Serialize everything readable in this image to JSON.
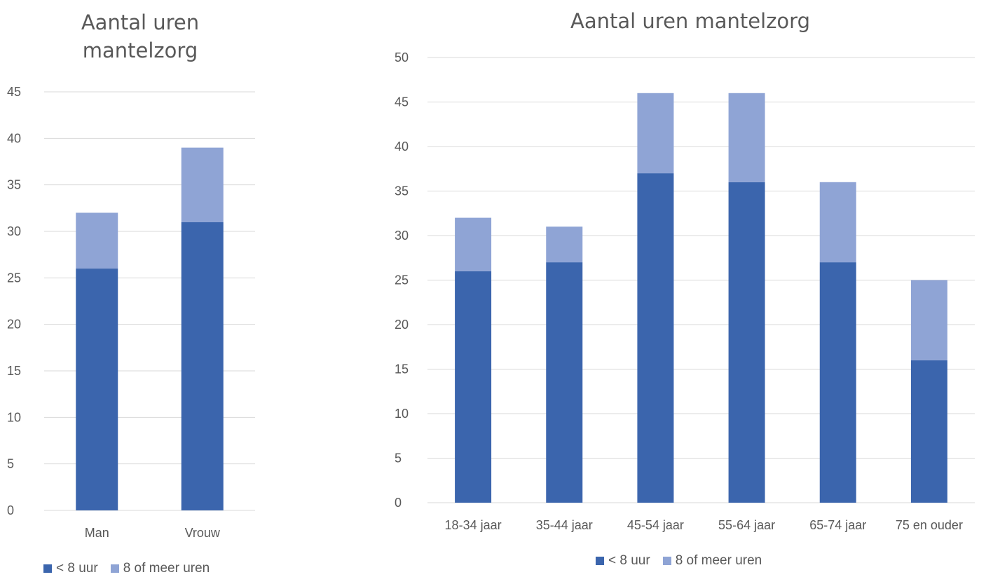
{
  "colors": {
    "lt8": "#3b65ad",
    "ge8": "#8fa4d5",
    "grid": "#d9d9d9",
    "text": "#595959"
  },
  "chart_data": [
    {
      "type": "bar",
      "stacked": true,
      "title": "Aantal uren mantelzorg",
      "categories": [
        "Man",
        "Vrouw"
      ],
      "series": [
        {
          "name": "< 8 uur",
          "values": [
            26,
            31
          ]
        },
        {
          "name": "8 of meer uren",
          "values": [
            6,
            8
          ]
        }
      ],
      "ylim": [
        0,
        45
      ],
      "yticks": [
        0,
        5,
        10,
        15,
        20,
        25,
        30,
        35,
        40,
        45
      ],
      "grid": true,
      "legend": "bottom"
    },
    {
      "type": "bar",
      "stacked": true,
      "title": "Aantal uren mantelzorg",
      "categories": [
        "18-34 jaar",
        "35-44 jaar",
        "45-54 jaar",
        "55-64 jaar",
        "65-74 jaar",
        "75 en ouder"
      ],
      "series": [
        {
          "name": "< 8 uur",
          "values": [
            26,
            27,
            37,
            36,
            27,
            16
          ]
        },
        {
          "name": "8 of meer uren",
          "values": [
            6,
            4,
            9,
            10,
            9,
            9
          ]
        }
      ],
      "ylim": [
        0,
        50
      ],
      "yticks": [
        0,
        5,
        10,
        15,
        20,
        25,
        30,
        35,
        40,
        45,
        50
      ],
      "grid": true,
      "legend": "bottom"
    }
  ]
}
